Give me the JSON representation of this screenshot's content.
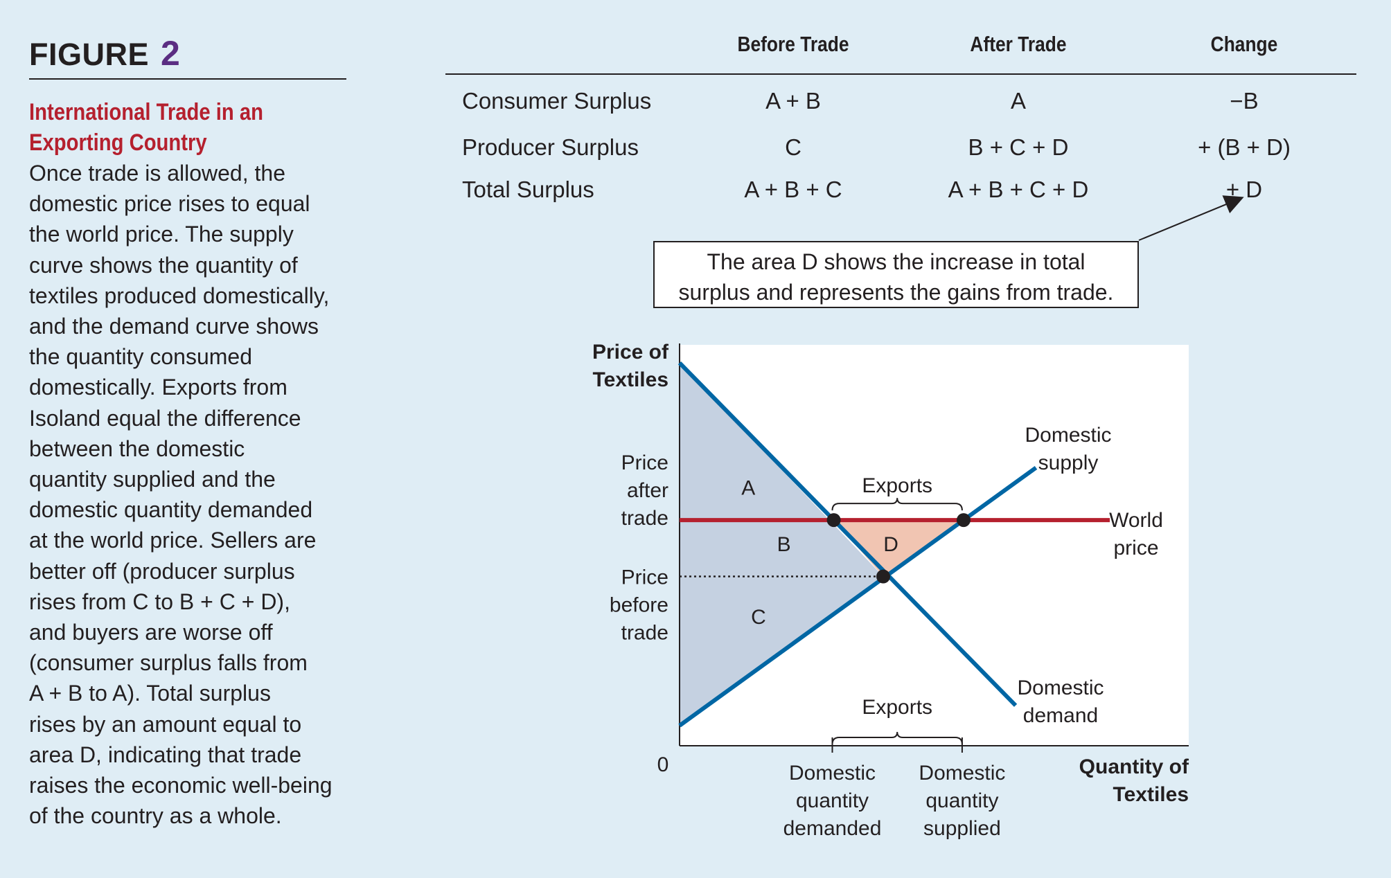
{
  "figure": {
    "label": "FIGURE",
    "number": "2"
  },
  "caption": {
    "title_line1": "International Trade in an",
    "title_line2": "Exporting Country",
    "body_lines": [
      "Once trade is allowed, the",
      "domestic price rises to equal",
      "the world price. The supply",
      "curve shows the quantity of",
      "textiles produced domestically,",
      "and the demand curve shows",
      "the quantity consumed",
      "domestically. Exports from",
      "Isoland equal the difference",
      "between the domestic",
      "quantity supplied and the",
      "domestic quantity demanded",
      "at the world price. Sellers are",
      "better off (producer surplus",
      "rises from C to B + C + D),",
      "and buyers are worse off",
      "(consumer surplus falls from",
      "A + B to A). Total surplus",
      "rises by an amount equal to",
      "area D, indicating that trade",
      "raises the economic well-being",
      "of the country as a whole."
    ]
  },
  "table": {
    "headers": [
      "Before Trade",
      "After Trade",
      "Change"
    ],
    "rows": [
      {
        "label": "Consumer Surplus",
        "before": "A + B",
        "after": "A",
        "change": "−B"
      },
      {
        "label": "Producer Surplus",
        "before": "C",
        "after": "B + C + D",
        "change": "+ (B + D)"
      },
      {
        "label": "Total Surplus",
        "before": "A + B + C",
        "after": "A + B + C + D",
        "change": "+ D"
      }
    ]
  },
  "note": {
    "line1": "The area D shows the increase in total",
    "line2": "surplus and represents the gains from trade."
  },
  "colors": {
    "curve": "#0066a4",
    "world_price": "#b5202e",
    "surplus_fill": "#c5d1e1",
    "gain_fill": "#f1c5b2",
    "plot_bg": "#ffffff",
    "page_bg": "#dfedf5"
  },
  "chart_data": {
    "type": "line",
    "ylabel_lines": [
      "Price of",
      "Textiles"
    ],
    "xlabel_lines": [
      "Quantity of",
      "Textiles"
    ],
    "origin_label": "0",
    "xlim": [
      0,
      100
    ],
    "ylim": [
      0,
      100
    ],
    "series": [
      {
        "name": "Domestic demand",
        "label_lines": [
          "Domestic",
          "demand"
        ],
        "x": [
          0,
          66
        ],
        "y": [
          95,
          10
        ]
      },
      {
        "name": "Domestic supply",
        "label_lines": [
          "Domestic",
          "supply"
        ],
        "x": [
          0,
          70
        ],
        "y": [
          5,
          69
        ]
      },
      {
        "name": "World price",
        "label_lines": [
          "World",
          "price"
        ],
        "x": [
          0,
          84.5
        ],
        "y": [
          56,
          56
        ]
      }
    ],
    "price_after_trade": 56,
    "price_before_trade": 42,
    "y_tick_labels": [
      {
        "lines": [
          "Price",
          "after",
          "trade"
        ],
        "y": 56
      },
      {
        "lines": [
          "Price",
          "before",
          "trade"
        ],
        "y": 42
      }
    ],
    "x_tick_labels": [
      {
        "lines": [
          "Domestic",
          "quantity",
          "demanded"
        ],
        "x": 30
      },
      {
        "lines": [
          "Domestic",
          "quantity",
          "supplied"
        ],
        "x": 55.5
      }
    ],
    "equilibrium": {
      "x": 40,
      "y": 42
    },
    "regions": [
      {
        "label": "A",
        "x": 13.5,
        "y": 64
      },
      {
        "label": "B",
        "x": 20.5,
        "y": 50
      },
      {
        "label": "C",
        "x": 15.5,
        "y": 32
      },
      {
        "label": "D",
        "x": 41.5,
        "y": 50
      }
    ],
    "annotations": [
      {
        "text": "Exports",
        "x_from": 30,
        "x_to": 55.5,
        "y": 56,
        "placement": "above price line"
      },
      {
        "text": "Exports",
        "x_from": 30,
        "x_to": 55.5,
        "y": 4,
        "placement": "above x-axis"
      }
    ],
    "grid": false
  }
}
